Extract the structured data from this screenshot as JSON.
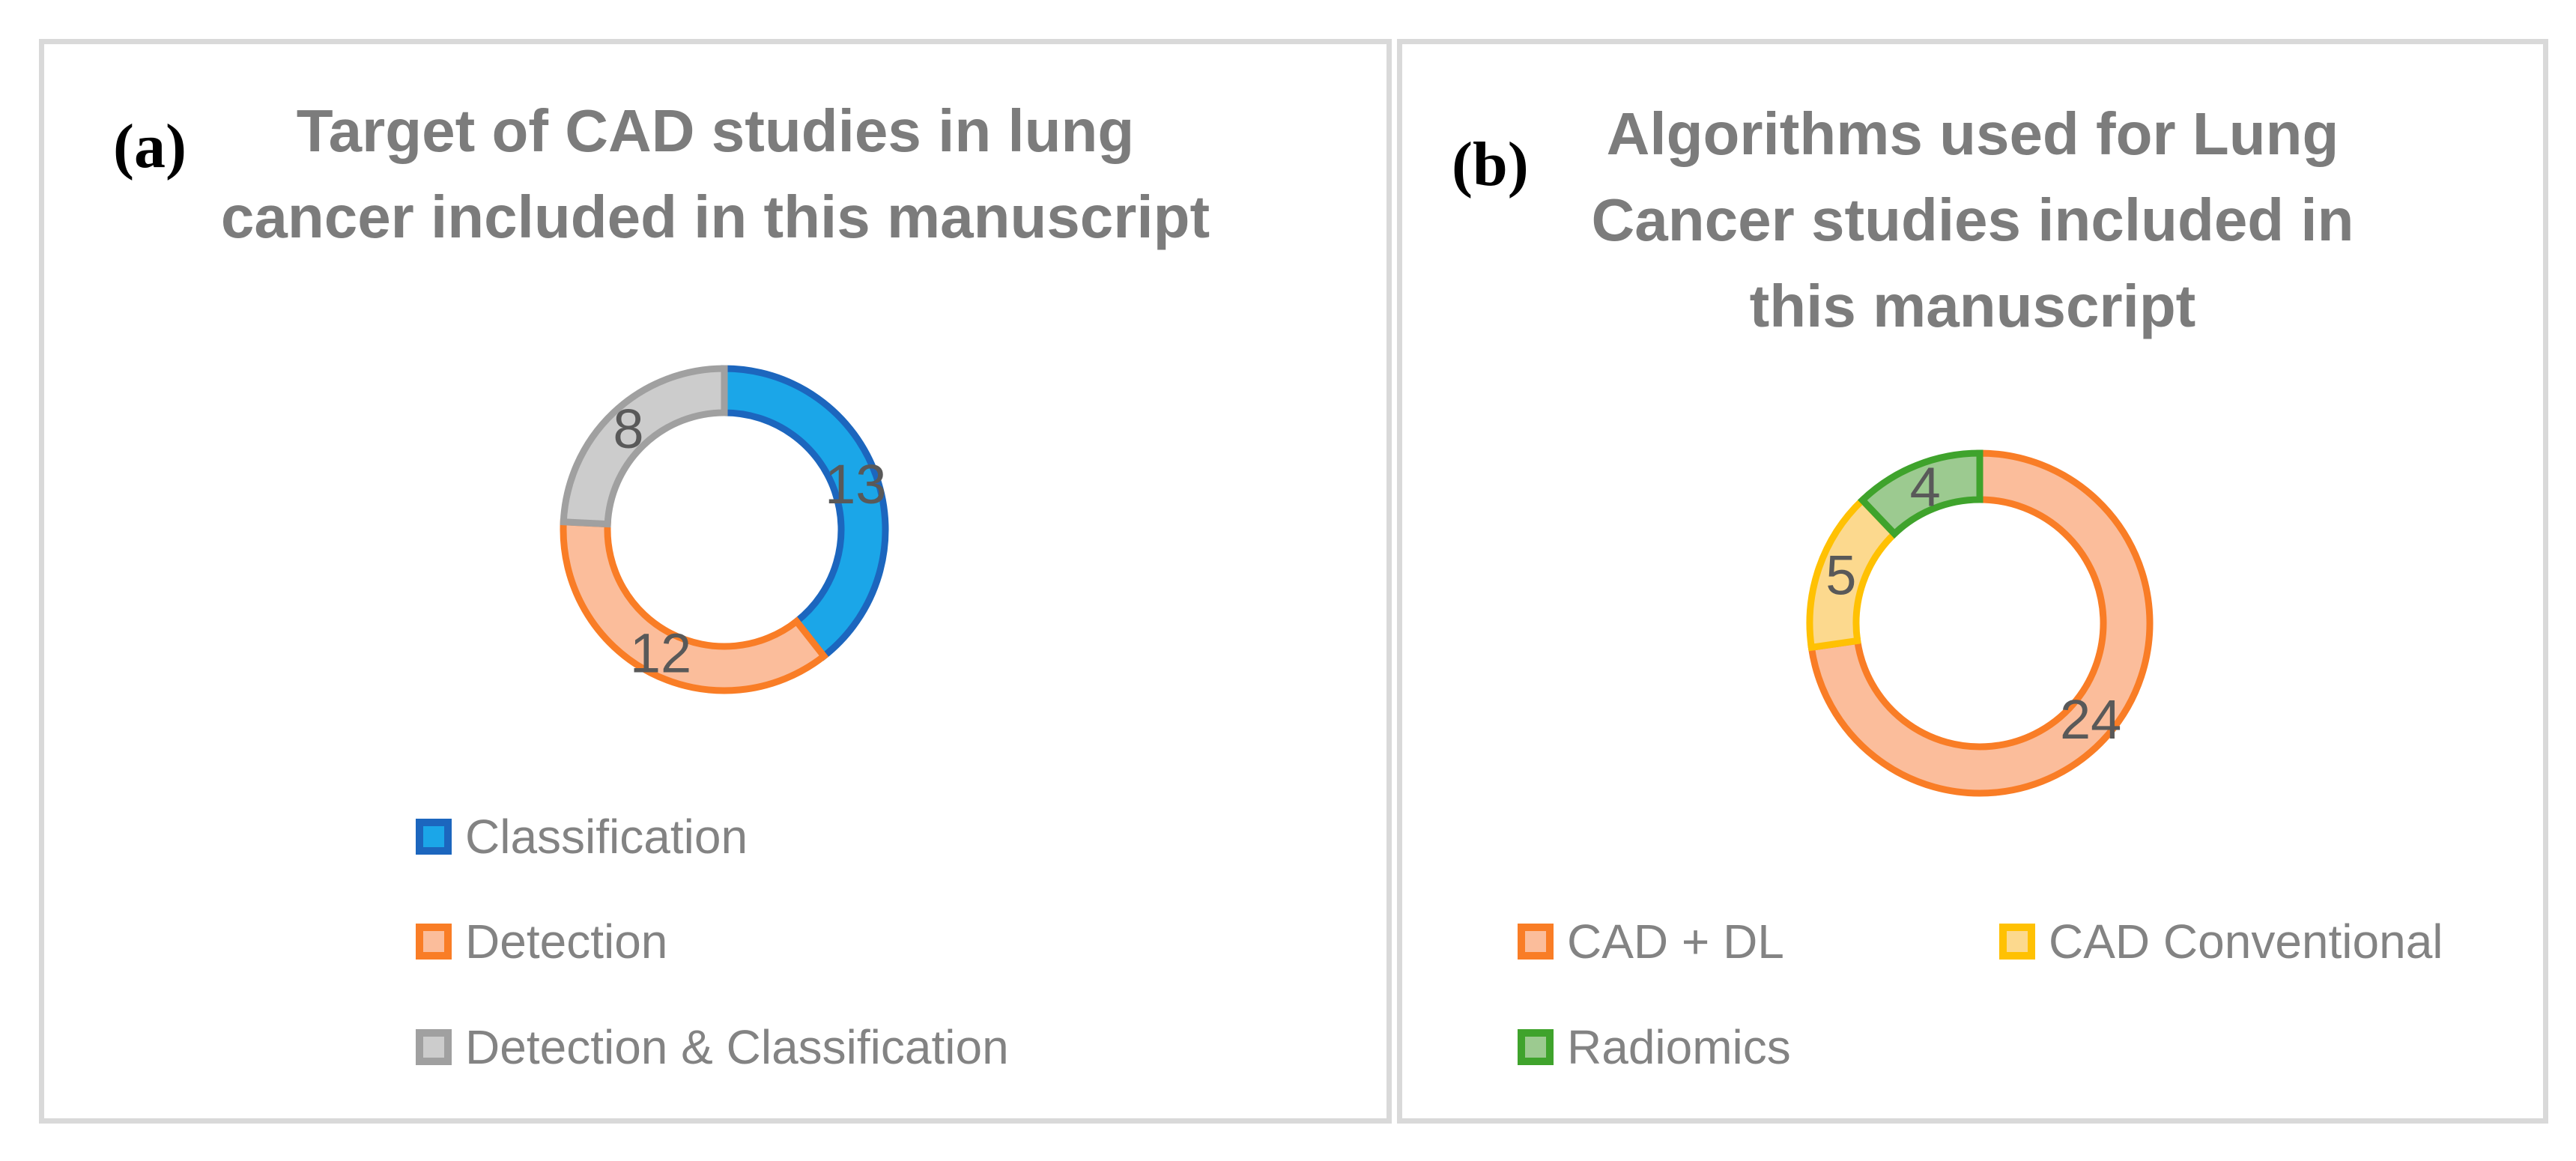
{
  "figure": {
    "background": "#ffffff",
    "panel_border_color": "#d9d9d9",
    "title_color": "#7c7c7c",
    "legend_text_color": "#838383",
    "data_label_color": "#595959"
  },
  "chart_data": [
    {
      "type": "donut",
      "panel_label": "(a)",
      "title": "Target of CAD studies in lung cancer included in this manuscript",
      "title_lines": [
        "Target of CAD studies in lung",
        "cancer included in this manuscript"
      ],
      "categories": [
        "Classification",
        "Detection",
        "Detection & Classification"
      ],
      "values": [
        13,
        12,
        8
      ],
      "total": 33,
      "slice_fills": [
        "#1ba6e8",
        "#fbbd9b",
        "#cccccc"
      ],
      "slice_borders": [
        "#1c66be",
        "#f97d26",
        "#a0a0a0"
      ],
      "start_angle_deg": 0,
      "direction": "clockwise",
      "hole_ratio": 0.73,
      "data_labels_shown": true,
      "legend_position": "bottom-left"
    },
    {
      "type": "donut",
      "panel_label": "(b)",
      "title": "Algorithms used for Lung Cancer studies included in this manuscript",
      "title_lines": [
        "Algorithms used for Lung",
        "Cancer studies included in",
        "this manuscript"
      ],
      "categories": [
        "CAD + DL",
        "CAD Conventional",
        "Radiomics"
      ],
      "values": [
        24,
        5,
        4
      ],
      "total": 33,
      "slice_fills": [
        "#fbbd9b",
        "#fcd98e",
        "#9cca90"
      ],
      "slice_borders": [
        "#f97d26",
        "#ffc103",
        "#3fa32c"
      ],
      "start_angle_deg": 0,
      "direction": "clockwise",
      "hole_ratio": 0.73,
      "data_labels_shown": true,
      "legend_position": "bottom-two-columns"
    }
  ]
}
